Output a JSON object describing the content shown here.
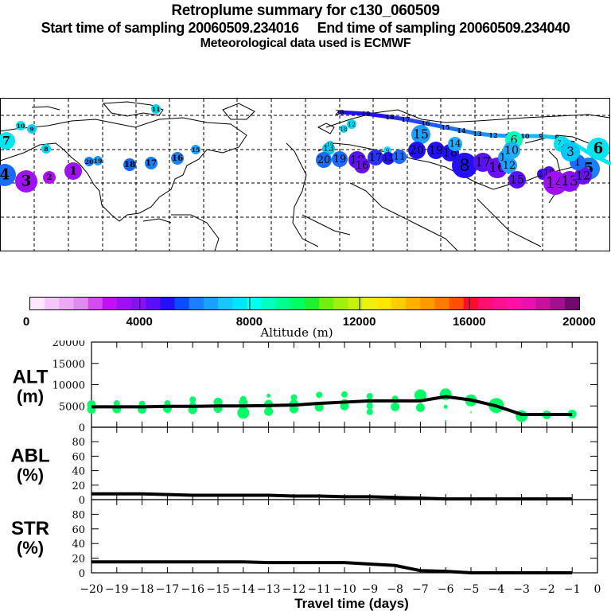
{
  "header": {
    "title": "Retroplume summary for c130_060509",
    "sampling_line": "Start time of sampling 20060509.234016     End time of sampling 20060509.234040",
    "met_line": "Meteorological data used is ECMWF"
  },
  "colors": {
    "scatter_green": "#00ff66",
    "line": "#000000",
    "colorbar": [
      "#ffe6ff",
      "#f5c6fa",
      "#ecaaf5",
      "#e28af0",
      "#d24cf0",
      "#c210f0",
      "#a010f5",
      "#8a10f0",
      "#5a10f5",
      "#2410f5",
      "#0a4cff",
      "#1a80ff",
      "#1aa0ff",
      "#1ac6ff",
      "#00e6ff",
      "#00fff0",
      "#00ffc0",
      "#00ff90",
      "#00ff60",
      "#20f030",
      "#70f010",
      "#a0f010",
      "#c8f010",
      "#f0f010",
      "#ffe600",
      "#ffcc00",
      "#ffb000",
      "#ff9a00",
      "#ff7a00",
      "#ff5000",
      "#ff0a30",
      "#ff1070",
      "#ff1090",
      "#ff10a8",
      "#e810b0",
      "#c810a0",
      "#a01090",
      "#700a70"
    ]
  },
  "map": {
    "label": "retroplume-map",
    "clusters": [
      {
        "day": "1",
        "lon": -175,
        "lat": 50,
        "color": "#a010f5",
        "size": "large"
      },
      {
        "day": "2",
        "lon": -177,
        "lat": 49,
        "color": "#b010f0",
        "size": "medium"
      },
      {
        "day": "3",
        "lon": -188,
        "lat": 48,
        "color": "#a010f5",
        "size": "xlarge"
      },
      {
        "day": "4",
        "lon": -198,
        "lat": 48,
        "color": "#1a6cff",
        "size": "xlarge"
      },
      {
        "day": "5",
        "lon": 170,
        "lat": 49,
        "color": "#1a80ff",
        "size": "xlarge"
      },
      {
        "day": "6",
        "lon": 180,
        "lat": 57,
        "color": "#00e6f0",
        "size": "xlarge"
      },
      {
        "day": "7",
        "lon": -197,
        "lat": 61,
        "color": "#00e6f0",
        "size": "large"
      },
      {
        "day": "8",
        "lon": -186,
        "lat": 58,
        "color": "#00d8f0",
        "size": "small"
      },
      {
        "day": "9",
        "lon": -192,
        "lat": 67,
        "color": "#00d8f0",
        "size": "small"
      },
      {
        "day": "10",
        "lon": -194,
        "lat": 69,
        "color": "#00e6f0",
        "size": "small"
      },
      {
        "day": "11",
        "lon": -134,
        "lat": 73,
        "color": "#00d8f0",
        "size": "small"
      },
      {
        "day": "15",
        "lon": -105,
        "lat": 58,
        "color": "#1aa0ff",
        "size": "small"
      },
      {
        "day": "16",
        "lon": -110,
        "lat": 54,
        "color": "#1a80ff",
        "size": "medium"
      },
      {
        "day": "17",
        "lon": -118,
        "lat": 52,
        "color": "#1a80ff",
        "size": "medium"
      },
      {
        "day": "18",
        "lon": -125,
        "lat": 52,
        "color": "#0a6cff",
        "size": "medium"
      },
      {
        "day": "19",
        "lon": -158,
        "lat": 55,
        "color": "#1aa0ff",
        "size": "small"
      },
      {
        "day": "20",
        "lon": -161,
        "lat": 55,
        "color": "#1a80ff",
        "size": "small"
      }
    ],
    "track_labels": [
      "20",
      "19",
      "18",
      "17",
      "16",
      "15",
      "14",
      "13",
      "12",
      "11",
      "10",
      "9",
      "8",
      "7",
      "6",
      "5",
      "4",
      "3",
      "2",
      "1"
    ]
  },
  "colorbar": {
    "ticks": [
      "0",
      "4000",
      "8000",
      "12000",
      "16000",
      "20000"
    ],
    "label": "Altitude (m)"
  },
  "chart_data": [
    {
      "type": "line",
      "panel": "ALT",
      "ylabel": "ALT\n(m)",
      "ylabel_line1": "ALT",
      "ylabel_line2": "(m)",
      "ylim": [
        0,
        20000
      ],
      "yticks": [
        "0",
        "5000",
        "10000",
        "15000",
        "20000"
      ],
      "x": [
        -20,
        -19,
        -18,
        -17,
        -16,
        -15,
        -14,
        -13,
        -12,
        -11,
        -10,
        -9,
        -8,
        -7,
        -6,
        -5,
        -4,
        -3,
        -2,
        -1
      ],
      "line_values": [
        4800,
        4800,
        4800,
        4900,
        4900,
        5000,
        5000,
        5100,
        5200,
        5600,
        5900,
        6200,
        6200,
        6200,
        7200,
        6400,
        5000,
        3000,
        3000,
        3000
      ],
      "scatter": [
        {
          "x": -20,
          "y": 4200,
          "size": "medium"
        },
        {
          "x": -20,
          "y": 5300,
          "size": "medium"
        },
        {
          "x": -19,
          "y": 4300,
          "size": "medium"
        },
        {
          "x": -19,
          "y": 5600,
          "size": "small"
        },
        {
          "x": -18,
          "y": 4200,
          "size": "medium"
        },
        {
          "x": -18,
          "y": 5500,
          "size": "small"
        },
        {
          "x": -17,
          "y": 4400,
          "size": "medium"
        },
        {
          "x": -17,
          "y": 5600,
          "size": "small"
        },
        {
          "x": -16,
          "y": 4100,
          "size": "medium"
        },
        {
          "x": -16,
          "y": 5300,
          "size": "small"
        },
        {
          "x": -16,
          "y": 6500,
          "size": "small"
        },
        {
          "x": -15,
          "y": 4400,
          "size": "medium"
        },
        {
          "x": -15,
          "y": 5900,
          "size": "medium"
        },
        {
          "x": -14,
          "y": 3400,
          "size": "large"
        },
        {
          "x": -14,
          "y": 5800,
          "size": "medium"
        },
        {
          "x": -14,
          "y": 6600,
          "size": "small"
        },
        {
          "x": -13,
          "y": 3700,
          "size": "medium"
        },
        {
          "x": -13,
          "y": 5400,
          "size": "medium"
        },
        {
          "x": -13,
          "y": 7400,
          "size": "tiny"
        },
        {
          "x": -12,
          "y": 4300,
          "size": "medium"
        },
        {
          "x": -12,
          "y": 5500,
          "size": "medium"
        },
        {
          "x": -12,
          "y": 7000,
          "size": "small"
        },
        {
          "x": -11,
          "y": 4700,
          "size": "medium"
        },
        {
          "x": -11,
          "y": 7600,
          "size": "small"
        },
        {
          "x": -10,
          "y": 5000,
          "size": "medium"
        },
        {
          "x": -10,
          "y": 5900,
          "size": "small"
        },
        {
          "x": -10,
          "y": 7700,
          "size": "small"
        },
        {
          "x": -9,
          "y": 3600,
          "size": "small"
        },
        {
          "x": -9,
          "y": 5000,
          "size": "small"
        },
        {
          "x": -9,
          "y": 6100,
          "size": "small"
        },
        {
          "x": -9,
          "y": 7300,
          "size": "small"
        },
        {
          "x": -8,
          "y": 4800,
          "size": "medium"
        },
        {
          "x": -8,
          "y": 6700,
          "size": "small"
        },
        {
          "x": -7,
          "y": 4600,
          "size": "medium"
        },
        {
          "x": -7,
          "y": 7500,
          "size": "large"
        },
        {
          "x": -6,
          "y": 7700,
          "size": "large"
        },
        {
          "x": -6,
          "y": 4800,
          "size": "tiny"
        },
        {
          "x": -6,
          "y": 1500,
          "size": "dot"
        },
        {
          "x": -5,
          "y": 6300,
          "size": "large"
        },
        {
          "x": -5,
          "y": 3500,
          "size": "dot"
        },
        {
          "x": -4,
          "y": 5100,
          "size": "xlarge"
        },
        {
          "x": -3,
          "y": 2600,
          "size": "large"
        },
        {
          "x": -2,
          "y": 2900,
          "size": "medium"
        },
        {
          "x": -1,
          "y": 3100,
          "size": "medium"
        }
      ]
    },
    {
      "type": "line",
      "panel": "ABL",
      "ylabel_line1": "ABL",
      "ylabel_line2": "(%)",
      "ylim": [
        0,
        100
      ],
      "yticks": [
        "0",
        "20",
        "40",
        "60",
        "80"
      ],
      "x": [
        -20,
        -19,
        -18,
        -17,
        -16,
        -15,
        -14,
        -13,
        -12,
        -11,
        -10,
        -9,
        -8,
        -7,
        -6,
        -5,
        -4,
        -3,
        -2,
        -1
      ],
      "values": [
        8,
        8,
        8,
        7,
        6,
        6,
        6,
        6,
        5,
        5,
        4,
        4,
        3,
        2,
        1,
        1,
        1,
        1,
        1,
        1
      ]
    },
    {
      "type": "line",
      "panel": "STR",
      "ylabel_line1": "STR",
      "ylabel_line2": "(%)",
      "ylim": [
        0,
        100
      ],
      "yticks": [
        "0",
        "20",
        "40",
        "60",
        "80"
      ],
      "x": [
        -20,
        -19,
        -18,
        -17,
        -16,
        -15,
        -14,
        -13,
        -12,
        -11,
        -10,
        -9,
        -8,
        -7,
        -6,
        -5,
        -4,
        -3,
        -2,
        -1
      ],
      "values": [
        15,
        15,
        15,
        15,
        15,
        15,
        15,
        14,
        14,
        14,
        14,
        12,
        10,
        3,
        2,
        0,
        0,
        0,
        0,
        0
      ],
      "xlabel": "Travel time (days)",
      "xlim": [
        -20,
        0
      ],
      "xticks": [
        "−20",
        "−19",
        "−18",
        "−17",
        "−16",
        "−15",
        "−14",
        "−13",
        "−12",
        "−11",
        "−10",
        "−9",
        "−8",
        "−7",
        "−6",
        "−5",
        "−4",
        "−3",
        "−2",
        "−1",
        "0"
      ]
    }
  ]
}
